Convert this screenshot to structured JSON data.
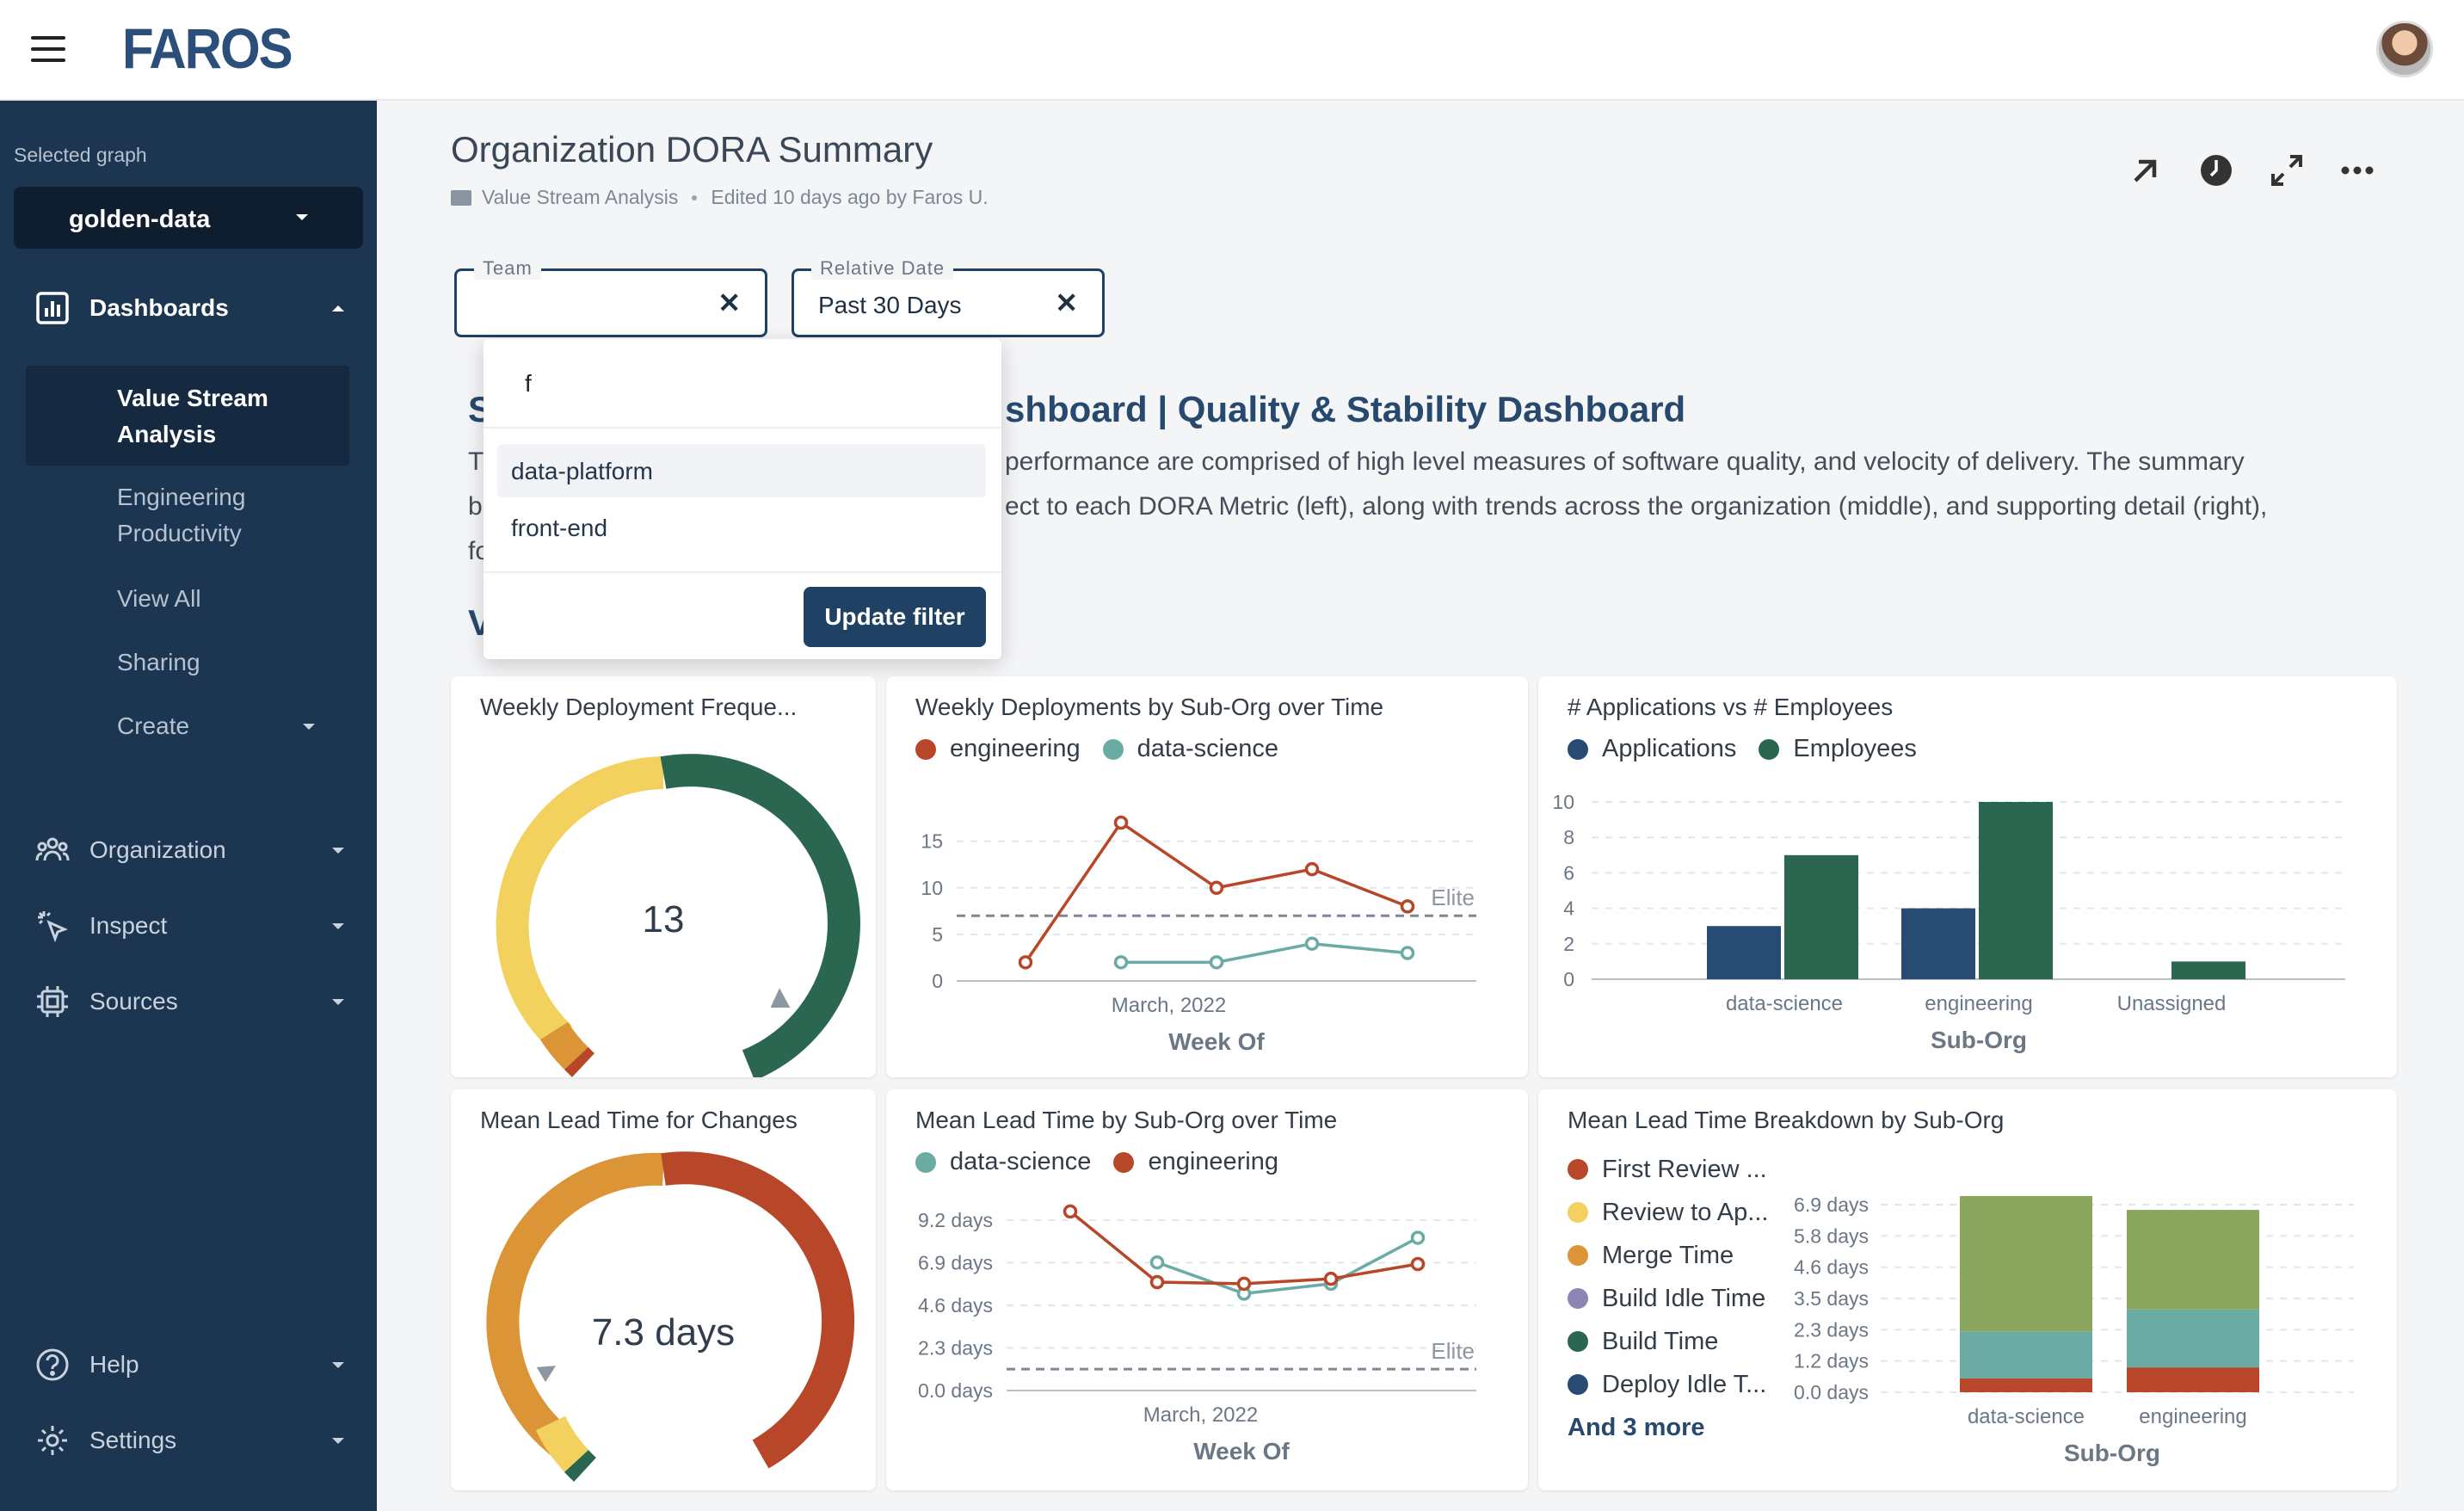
{
  "topbar": {
    "logo": "FAROS"
  },
  "sidebar": {
    "graph_caption": "Selected graph",
    "graph_value": "golden-data",
    "dashboards_label": "Dashboards",
    "sub_items": [
      "Value Stream Analysis",
      "Engineering Productivity",
      "View All",
      "Sharing",
      "Create"
    ],
    "organization_label": "Organization",
    "inspect_label": "Inspect",
    "sources_label": "Sources",
    "help_label": "Help",
    "settings_label": "Settings"
  },
  "header": {
    "title": "Organization DORA Summary",
    "breadcrumb": "Value Stream Analysis",
    "edited": "Edited 10 days ago by Faros U."
  },
  "filters": {
    "team": {
      "label": "Team",
      "value": ""
    },
    "date": {
      "label": "Relative Date",
      "value": "Past 30 Days"
    }
  },
  "dropdown": {
    "search_value": "f",
    "options": [
      "data-platform",
      "front-end"
    ],
    "button": "Update filter"
  },
  "background_text": {
    "title_s": "S",
    "title_rest": "shboard | Quality & Stability Dashboard",
    "line1_start": "T",
    "line1": "performance are comprised of high level measures of software quality, and velocity of delivery. The summary",
    "line2_start": "b",
    "line2": "ect to each DORA Metric (left), along with trends across the organization (middle), and supporting detail (right),",
    "line3_start": "fo",
    "v_frag": "V"
  },
  "colors": {
    "engineering": "#b8472a",
    "data_science": "#6aaba3",
    "applications": "#274b73",
    "employees": "#2a6650",
    "gauge_yellow": "#f2d15f",
    "gauge_orange": "#db9436",
    "gauge_red": "#b8472a",
    "gauge_green": "#2a6650",
    "lead_green": "#8aa65e"
  },
  "cards": {
    "gauge1": {
      "title": "Weekly Deployment Freque...",
      "value": "13"
    },
    "gauge2": {
      "title": "Mean Lead Time for Changes",
      "value": "7.3 days"
    },
    "weekly_deploy": {
      "title": "Weekly Deployments by Sub-Org over Time"
    },
    "apps_emps": {
      "title": "# Applications vs # Employees"
    },
    "lead_time_trend": {
      "title": "Mean Lead Time by Sub-Org over Time"
    },
    "breakdown": {
      "title": "Mean Lead Time Breakdown by Sub-Org",
      "more": "And 3 more"
    }
  },
  "chart_data": [
    {
      "type": "line",
      "title": "Weekly Deployments by Sub-Org over Time",
      "xlabel": "Week Of",
      "x_tick_labels": [
        "March, 2022"
      ],
      "y_ticks": [
        0,
        5,
        10,
        15
      ],
      "ylim": [
        0,
        17
      ],
      "x": [
        1,
        2,
        3,
        4,
        5
      ],
      "series": [
        {
          "name": "engineering",
          "values": [
            2,
            17,
            10,
            12,
            8
          ]
        },
        {
          "name": "data-science",
          "values": [
            null,
            2,
            2,
            4,
            3
          ]
        }
      ],
      "reference_line": {
        "label": "Elite",
        "value": 7
      },
      "legend": "top-left"
    },
    {
      "type": "bar",
      "title": "# Applications vs # Employees",
      "xlabel": "Sub-Org",
      "categories": [
        "data-science",
        "engineering",
        "Unassigned"
      ],
      "y_ticks": [
        0,
        2,
        4,
        6,
        8,
        10
      ],
      "ylim": [
        0,
        10
      ],
      "series": [
        {
          "name": "Applications",
          "values": [
            3,
            4,
            0
          ]
        },
        {
          "name": "Employees",
          "values": [
            7,
            10,
            1
          ]
        }
      ],
      "legend": "top-left"
    },
    {
      "type": "line",
      "title": "Mean Lead Time by Sub-Org over Time",
      "xlabel": "Week Of",
      "x_tick_labels": [
        "March, 2022"
      ],
      "y_tick_labels": [
        "0.0 days",
        "2.3 days",
        "4.6 days",
        "6.9 days",
        "9.2 days"
      ],
      "ylim": [
        0,
        11
      ],
      "x": [
        1,
        2,
        3,
        4,
        5
      ],
      "series": [
        {
          "name": "data-science",
          "values": [
            null,
            7.8,
            5.9,
            6.5,
            9.3
          ]
        },
        {
          "name": "engineering",
          "values": [
            10.9,
            6.6,
            6.5,
            6.8,
            7.7
          ]
        }
      ],
      "reference_line": {
        "label": "Elite",
        "value": 1.3
      },
      "legend": "top-left"
    },
    {
      "type": "bar",
      "stacked": true,
      "title": "Mean Lead Time Breakdown by Sub-Org",
      "xlabel": "Sub-Org",
      "categories": [
        "data-science",
        "engineering"
      ],
      "y_tick_labels": [
        "0.0 days",
        "1.2 days",
        "2.3 days",
        "3.5 days",
        "4.6 days",
        "5.8 days",
        "6.9 days"
      ],
      "ylim": [
        0,
        7.1
      ],
      "legend_entries": [
        "First Review ...",
        "Review to Ap...",
        "Merge Time",
        "Build Idle Time",
        "Build Time",
        "Deploy Idle T..."
      ],
      "series": [
        {
          "name": "First Review ...",
          "values": [
            0.5,
            0.9
          ]
        },
        {
          "name": "Review to Ap...",
          "values": [
            1.7,
            2.1
          ]
        },
        {
          "name": "Merge Time",
          "values": [
            4.9,
            3.6
          ]
        }
      ],
      "legend": "left"
    }
  ]
}
